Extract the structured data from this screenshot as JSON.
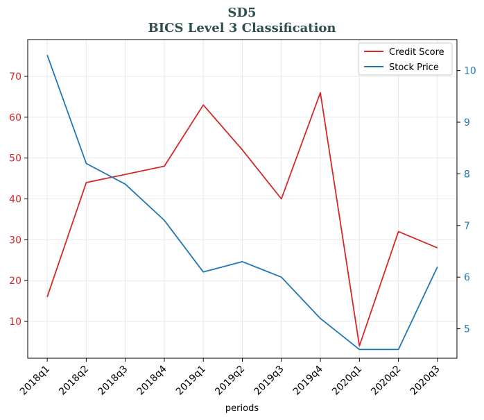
{
  "chart_data": {
    "type": "line",
    "title": "SD5",
    "subtitle": "BICS Level 3 Classification",
    "xlabel": "periods",
    "categories": [
      "2018q1",
      "2018q2",
      "2018q3",
      "2018q4",
      "2019q1",
      "2019q2",
      "2019q3",
      "2019q4",
      "2020q1",
      "2020q2",
      "2020q3"
    ],
    "series": [
      {
        "name": "Credit Score",
        "axis": "left",
        "color": "#d62728",
        "values": [
          16,
          44,
          46,
          48,
          63,
          52,
          40,
          66,
          4,
          32,
          28
        ]
      },
      {
        "name": "Stock Price",
        "axis": "right",
        "color": "#1f77b4",
        "values": [
          10.3,
          8.2,
          7.8,
          7.1,
          6.1,
          6.3,
          6.0,
          5.2,
          4.6,
          4.6,
          6.2
        ]
      }
    ],
    "y_left": {
      "ylim": [
        1,
        79
      ],
      "ticks": [
        10,
        20,
        30,
        40,
        50,
        60,
        70
      ],
      "color": "#d62728"
    },
    "y_right": {
      "ylim": [
        4.43,
        10.6
      ],
      "ticks": [
        5,
        6,
        7,
        8,
        9,
        10
      ],
      "color": "#1f77b4"
    },
    "grid": true,
    "legend_position": "top-right"
  }
}
